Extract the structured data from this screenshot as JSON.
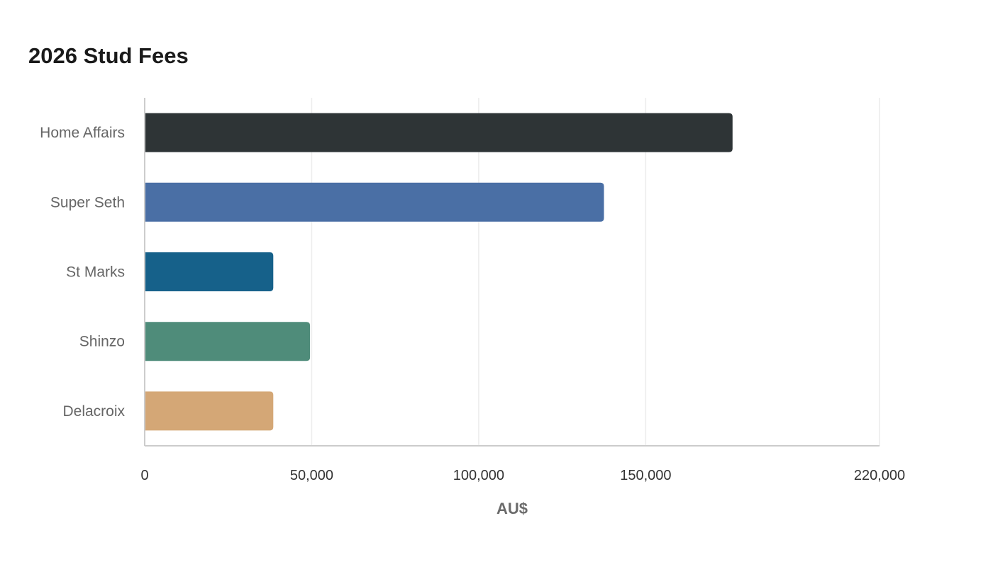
{
  "chart_data": {
    "type": "bar",
    "orientation": "horizontal",
    "title": "2026 Stud Fees",
    "xlabel": "AU$",
    "ylabel": "",
    "categories": [
      "Home Affairs",
      "Super Seth",
      "St Marks",
      "Shinzo",
      "Delacroix"
    ],
    "values": [
      176000,
      137500,
      38500,
      49500,
      38500
    ],
    "colors": [
      "#2e3436",
      "#4a6fa5",
      "#16618a",
      "#4f8c7a",
      "#d4a776"
    ],
    "xlim": [
      0,
      220000
    ],
    "xticks": [
      0,
      50000,
      100000,
      150000,
      220000
    ],
    "xtick_labels": [
      "0",
      "50,000",
      "100,000",
      "150,000",
      "220,000"
    ],
    "grid": true,
    "legend": "none"
  }
}
